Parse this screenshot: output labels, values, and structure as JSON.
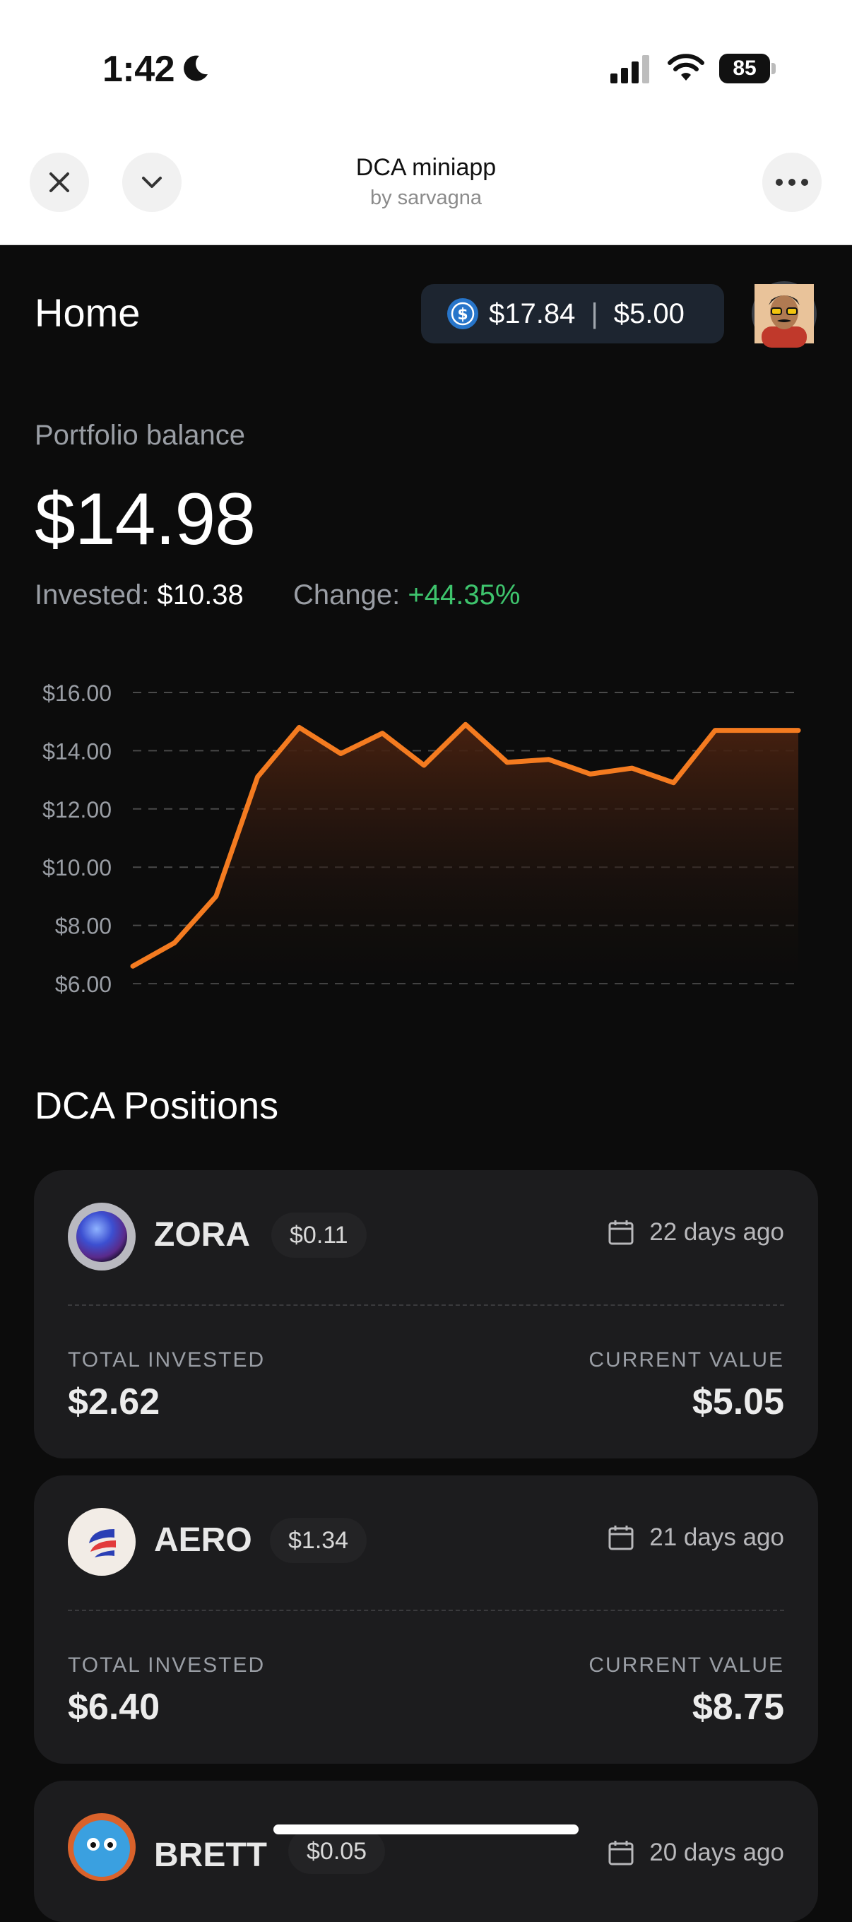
{
  "status_bar": {
    "time": "1:42",
    "battery": "85"
  },
  "header": {
    "title": "DCA miniapp",
    "subtitle": "by sarvagna"
  },
  "home": {
    "title": "Home",
    "balance_pill": {
      "usdc": "$17.84",
      "separator": "|",
      "second": "$5.00"
    }
  },
  "portfolio": {
    "label": "Portfolio balance",
    "value": "$14.98",
    "invested_label": "Invested:",
    "invested_value": "$10.38",
    "change_label": "Change:",
    "change_value": "+44.35%"
  },
  "chart_data": {
    "type": "area",
    "title": "",
    "xlabel": "",
    "ylabel": "",
    "ylim": [
      6,
      16
    ],
    "y_ticks": [
      "$16.00",
      "$14.00",
      "$12.00",
      "$10.00",
      "$8.00",
      "$6.00"
    ],
    "y_tick_values": [
      16,
      14,
      12,
      10,
      8,
      6
    ],
    "x": [
      0,
      1,
      2,
      3,
      4,
      5,
      6,
      7,
      8,
      9,
      10,
      11,
      12,
      13,
      14,
      15,
      16
    ],
    "series": [
      {
        "values": [
          6.6,
          7.4,
          9.0,
          13.1,
          14.8,
          13.9,
          14.6,
          13.5,
          14.9,
          13.6,
          13.7,
          13.2,
          13.4,
          12.9,
          14.7,
          14.7,
          14.7
        ]
      }
    ],
    "grid": true,
    "colors": {
      "line": "#f47b20",
      "fill_top": "#4a2210",
      "grid": "#4a4a4a"
    }
  },
  "positions": {
    "title": "DCA Positions",
    "items": [
      {
        "symbol": "ZORA",
        "price": "$0.11",
        "date": "22 days ago",
        "invested_label": "TOTAL INVESTED",
        "invested": "$2.62",
        "value_label": "CURRENT VALUE",
        "value": "$5.05"
      },
      {
        "symbol": "AERO",
        "price": "$1.34",
        "date": "21 days ago",
        "invested_label": "TOTAL INVESTED",
        "invested": "$6.40",
        "value_label": "CURRENT VALUE",
        "value": "$8.75"
      },
      {
        "symbol": "BRETT",
        "price": "$0.05",
        "date": "20 days ago"
      }
    ]
  },
  "icons": [
    "moon-icon",
    "signal-icon",
    "wifi-icon",
    "close-icon",
    "chevron-down-icon",
    "more-icon",
    "usdc-icon",
    "avatar",
    "calendar-icon"
  ]
}
